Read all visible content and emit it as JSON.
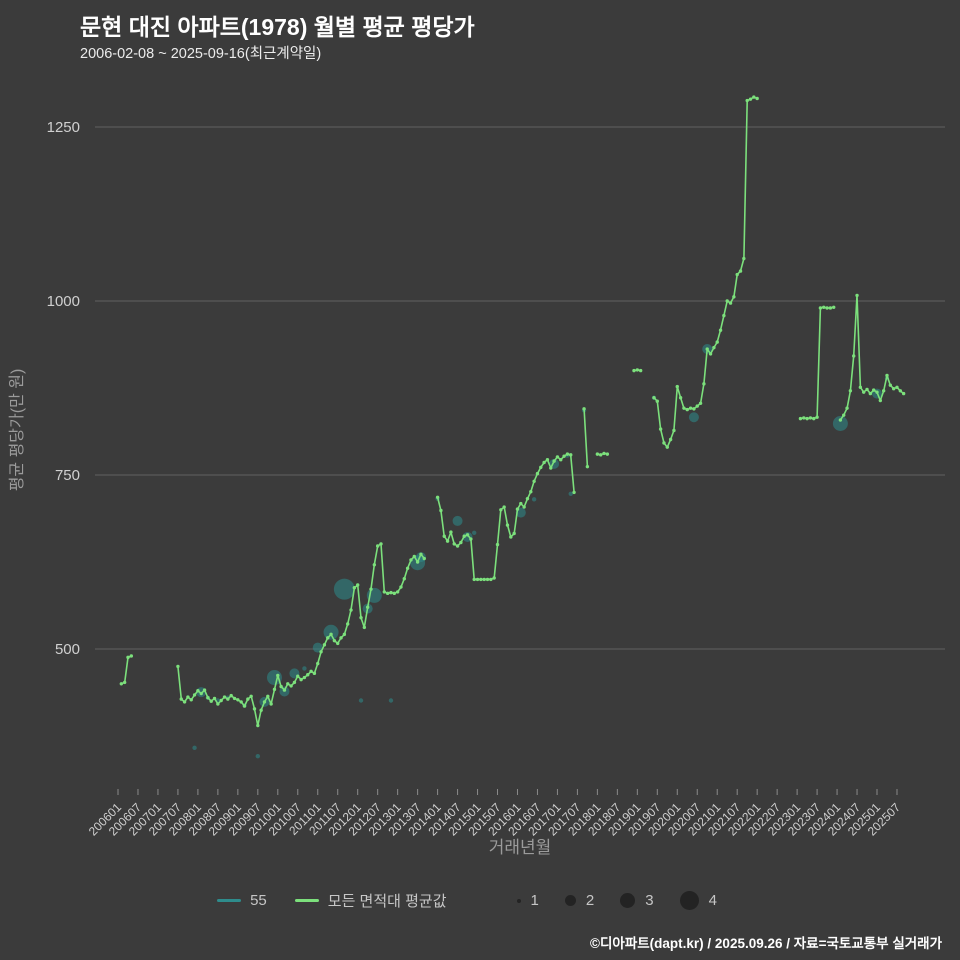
{
  "page": {
    "title": "문현 대진 아파트(1978) 월별 평균 평당가",
    "subtitle": "2006-02-08 ~ 2025-09-16(최근계약일)",
    "footer": "©디아파트(dapt.kr) / 2025.09.26 / 자료=국토교통부 실거래가"
  },
  "colors": {
    "background": "#3b3b3b",
    "grid": "#606060",
    "tick_text": "#d0d0d0",
    "axis_label": "#9b9b9b",
    "line_green": "#7ce07c",
    "scatter_teal": "#2e8c8c",
    "legend_text": "#c6c6c6",
    "size_dot": "#232323"
  },
  "legend": {
    "series": [
      {
        "label": "55",
        "color": "#2e8c8c"
      },
      {
        "label": "모든 면적대 평균값",
        "color": "#7ce07c"
      }
    ],
    "sizes": [
      {
        "label": "1",
        "r": 2
      },
      {
        "label": "2",
        "r": 5.5
      },
      {
        "label": "3",
        "r": 7.5
      },
      {
        "label": "4",
        "r": 9.5
      }
    ]
  },
  "chart_data": {
    "type": "line",
    "title": "문현 대진 아파트(1978) 월별 평균 평당가",
    "subtitle": "2006-02-08 ~ 2025-09-16(최근계약일)",
    "xlabel": "거래년월",
    "ylabel": "평균 평당가(만 원)",
    "yticks": [
      500,
      750,
      1000,
      1250
    ],
    "ylim": [
      320,
      1340
    ],
    "grid": true,
    "legend_position": "bottom",
    "x_tick_labels": [
      "200601",
      "200607",
      "200701",
      "200707",
      "200801",
      "200807",
      "200901",
      "200907",
      "201001",
      "201007",
      "201101",
      "201107",
      "201201",
      "201207",
      "201301",
      "201307",
      "201401",
      "201407",
      "201501",
      "201507",
      "201601",
      "201607",
      "201701",
      "201707",
      "201801",
      "201807",
      "201901",
      "201907",
      "202001",
      "202007",
      "202101",
      "202107",
      "202201",
      "202207",
      "202301",
      "202307",
      "202401",
      "202407",
      "202501",
      "202507"
    ],
    "series": [
      {
        "name": "모든 면적대 평균값",
        "type": "line",
        "color": "#7ce07c",
        "segments": [
          [
            [
              "200602",
              450
            ],
            [
              "200603",
              452
            ],
            [
              "200604",
              488
            ],
            [
              "200605",
              490
            ]
          ],
          [
            [
              "200707",
              475
            ],
            [
              "200708",
              428
            ],
            [
              "200709",
              424
            ],
            [
              "200710",
              431
            ],
            [
              "200711",
              427
            ],
            [
              "200712",
              434
            ],
            [
              "200801",
              440
            ],
            [
              "200802",
              436
            ],
            [
              "200803",
              441
            ],
            [
              "200804",
              430
            ],
            [
              "200805",
              425
            ],
            [
              "200806",
              429
            ],
            [
              "200807",
              421
            ],
            [
              "200808",
              426
            ],
            [
              "200809",
              431
            ],
            [
              "200810",
              428
            ],
            [
              "200811",
              433
            ],
            [
              "200812",
              429
            ],
            [
              "200901",
              427
            ],
            [
              "200902",
              424
            ],
            [
              "200903",
              418
            ],
            [
              "200904",
              428
            ],
            [
              "200905",
              432
            ],
            [
              "200906",
              414
            ],
            [
              "200907",
              390
            ],
            [
              "200908",
              412
            ],
            [
              "200909",
              424
            ],
            [
              "200910",
              432
            ],
            [
              "200911",
              421
            ],
            [
              "200912",
              442
            ],
            [
              "201001",
              462
            ],
            [
              "201002",
              446
            ],
            [
              "201003",
              441
            ],
            [
              "201004",
              450
            ],
            [
              "201005",
              447
            ],
            [
              "201006",
              452
            ],
            [
              "201007",
              461
            ],
            [
              "201008",
              456
            ],
            [
              "201009",
              459
            ],
            [
              "201010",
              463
            ],
            [
              "201011",
              468
            ],
            [
              "201012",
              465
            ],
            [
              "201101",
              479
            ],
            [
              "201102",
              496
            ],
            [
              "201103",
              506
            ],
            [
              "201104",
              516
            ],
            [
              "201105",
              521
            ],
            [
              "201106",
              512
            ],
            [
              "201107",
              508
            ],
            [
              "201108",
              516
            ],
            [
              "201109",
              521
            ],
            [
              "201110",
              536
            ],
            [
              "201111",
              556
            ],
            [
              "201112",
              588
            ],
            [
              "201201",
              592
            ],
            [
              "201202",
              545
            ],
            [
              "201203",
              531
            ],
            [
              "201204",
              560
            ],
            [
              "201205",
              586
            ],
            [
              "201206",
              621
            ],
            [
              "201207",
              648
            ],
            [
              "201208",
              651
            ],
            [
              "201209",
              582
            ],
            [
              "201210",
              580
            ],
            [
              "201211",
              581
            ],
            [
              "201212",
              580
            ],
            [
              "201301",
              582
            ],
            [
              "201302",
              589
            ],
            [
              "201303",
              601
            ],
            [
              "201304",
              616
            ],
            [
              "201305",
              628
            ],
            [
              "201306",
              633
            ],
            [
              "201307",
              625
            ],
            [
              "201308",
              636
            ],
            [
              "201309",
              630
            ]
          ],
          [
            [
              "201401",
              718
            ],
            [
              "201402",
              699
            ],
            [
              "201403",
              662
            ],
            [
              "201404",
              655
            ],
            [
              "201405",
              668
            ],
            [
              "201406",
              651
            ],
            [
              "201407",
              648
            ],
            [
              "201408",
              653
            ],
            [
              "201409",
              662
            ],
            [
              "201410",
              664
            ],
            [
              "201411",
              658
            ],
            [
              "201412",
              600
            ],
            [
              "201501",
              600
            ],
            [
              "201502",
              600
            ],
            [
              "201503",
              600
            ],
            [
              "201504",
              600
            ],
            [
              "201505",
              600
            ],
            [
              "201506",
              602
            ],
            [
              "201507",
              650
            ],
            [
              "201508",
              700
            ],
            [
              "201509",
              704
            ],
            [
              "201510",
              678
            ],
            [
              "201511",
              661
            ],
            [
              "201512",
              666
            ],
            [
              "201601",
              701
            ],
            [
              "201602",
              709
            ],
            [
              "201603",
              704
            ],
            [
              "201604",
              716
            ],
            [
              "201605",
              726
            ],
            [
              "201606",
              741
            ],
            [
              "201607",
              752
            ],
            [
              "201608",
              761
            ],
            [
              "201609",
              768
            ],
            [
              "201610",
              772
            ],
            [
              "201611",
              760
            ],
            [
              "201612",
              770
            ],
            [
              "201701",
              776
            ],
            [
              "201702",
              772
            ],
            [
              "201703",
              777
            ],
            [
              "201704",
              780
            ],
            [
              "201705",
              779
            ],
            [
              "201706",
              725
            ]
          ],
          [
            [
              "201709",
              845
            ],
            [
              "201710",
              762
            ]
          ],
          [
            [
              "201801",
              780
            ],
            [
              "201802",
              779
            ],
            [
              "201803",
              781
            ],
            [
              "201804",
              780
            ]
          ],
          [
            [
              "201812",
              900
            ],
            [
              "201901",
              901
            ],
            [
              "201902",
              900
            ]
          ],
          [
            [
              "201906",
              861
            ],
            [
              "201907",
              856
            ],
            [
              "201908",
              816
            ],
            [
              "201909",
              796
            ],
            [
              "201910",
              790
            ],
            [
              "201911",
              801
            ],
            [
              "201912",
              814
            ],
            [
              "202001",
              877
            ],
            [
              "202002",
              861
            ],
            [
              "202003",
              846
            ],
            [
              "202004",
              844
            ],
            [
              "202005",
              846
            ],
            [
              "202006",
              845
            ],
            [
              "202007",
              849
            ],
            [
              "202008",
              853
            ],
            [
              "202009",
              881
            ],
            [
              "202010",
              931
            ],
            [
              "202011",
              924
            ],
            [
              "202012",
              933
            ],
            [
              "202101",
              941
            ],
            [
              "202102",
              958
            ],
            [
              "202103",
              979
            ],
            [
              "202104",
              1000
            ],
            [
              "202105",
              997
            ],
            [
              "202106",
              1006
            ],
            [
              "202107",
              1038
            ],
            [
              "202108",
              1043
            ],
            [
              "202109",
              1061
            ],
            [
              "202110",
              1288
            ],
            [
              "202111",
              1290
            ],
            [
              "202112",
              1293
            ],
            [
              "202201",
              1291
            ]
          ],
          [
            [
              "202302",
              831
            ],
            [
              "202303",
              832
            ],
            [
              "202304",
              831
            ],
            [
              "202305",
              832
            ],
            [
              "202306",
              831
            ],
            [
              "202307",
              833
            ],
            [
              "202308",
              990
            ],
            [
              "202309",
              991
            ],
            [
              "202310",
              990
            ],
            [
              "202311",
              990
            ],
            [
              "202312",
              991
            ]
          ],
          [
            [
              "202402",
              829
            ],
            [
              "202403",
              836
            ],
            [
              "202404",
              846
            ],
            [
              "202405",
              871
            ],
            [
              "202406",
              921
            ],
            [
              "202407",
              1008
            ],
            [
              "202408",
              876
            ],
            [
              "202409",
              869
            ],
            [
              "202410",
              873
            ],
            [
              "202411",
              867
            ],
            [
              "202412",
              872
            ],
            [
              "202501",
              869
            ],
            [
              "202502",
              857
            ],
            [
              "202503",
              871
            ],
            [
              "202504",
              893
            ],
            [
              "202505",
              879
            ],
            [
              "202506",
              874
            ],
            [
              "202507",
              876
            ],
            [
              "202508",
              871
            ],
            [
              "202509",
              867
            ]
          ]
        ]
      },
      {
        "name": "55",
        "type": "scatter",
        "color": "#2e8c8c",
        "points": [
          [
            "200712",
            358,
            1
          ],
          [
            "200907",
            346,
            1
          ],
          [
            "200802",
            438,
            2
          ],
          [
            "200804",
            430,
            1
          ],
          [
            "200807",
            426,
            1
          ],
          [
            "200810",
            430,
            1
          ],
          [
            "200903",
            419,
            1
          ],
          [
            "200909",
            424,
            2
          ],
          [
            "200912",
            459,
            3
          ],
          [
            "201003",
            439,
            2
          ],
          [
            "201006",
            465,
            2
          ],
          [
            "201009",
            472,
            1
          ],
          [
            "201101",
            502,
            2
          ],
          [
            "201105",
            524,
            3
          ],
          [
            "201109",
            586,
            4
          ],
          [
            "201202",
            426,
            1
          ],
          [
            "201204",
            558,
            2
          ],
          [
            "201206",
            577,
            3
          ],
          [
            "201211",
            426,
            1
          ],
          [
            "201307",
            624,
            3
          ],
          [
            "201308",
            632,
            2
          ],
          [
            "201401",
            716,
            1
          ],
          [
            "201407",
            684,
            2
          ],
          [
            "201410",
            661,
            2
          ],
          [
            "201412",
            667,
            1
          ],
          [
            "201602",
            696,
            2
          ],
          [
            "201606",
            715,
            1
          ],
          [
            "201612",
            766,
            2
          ],
          [
            "201704",
            778,
            1
          ],
          [
            "201705",
            723,
            1
          ],
          [
            "201709",
            843,
            1
          ],
          [
            "201906",
            861,
            1
          ],
          [
            "202006",
            833,
            2
          ],
          [
            "202010",
            931,
            2
          ],
          [
            "202402",
            824,
            3
          ],
          [
            "202501",
            867,
            2
          ],
          [
            "202504",
            889,
            1
          ]
        ]
      }
    ],
    "size_legend": [
      1,
      2,
      3,
      4
    ]
  }
}
